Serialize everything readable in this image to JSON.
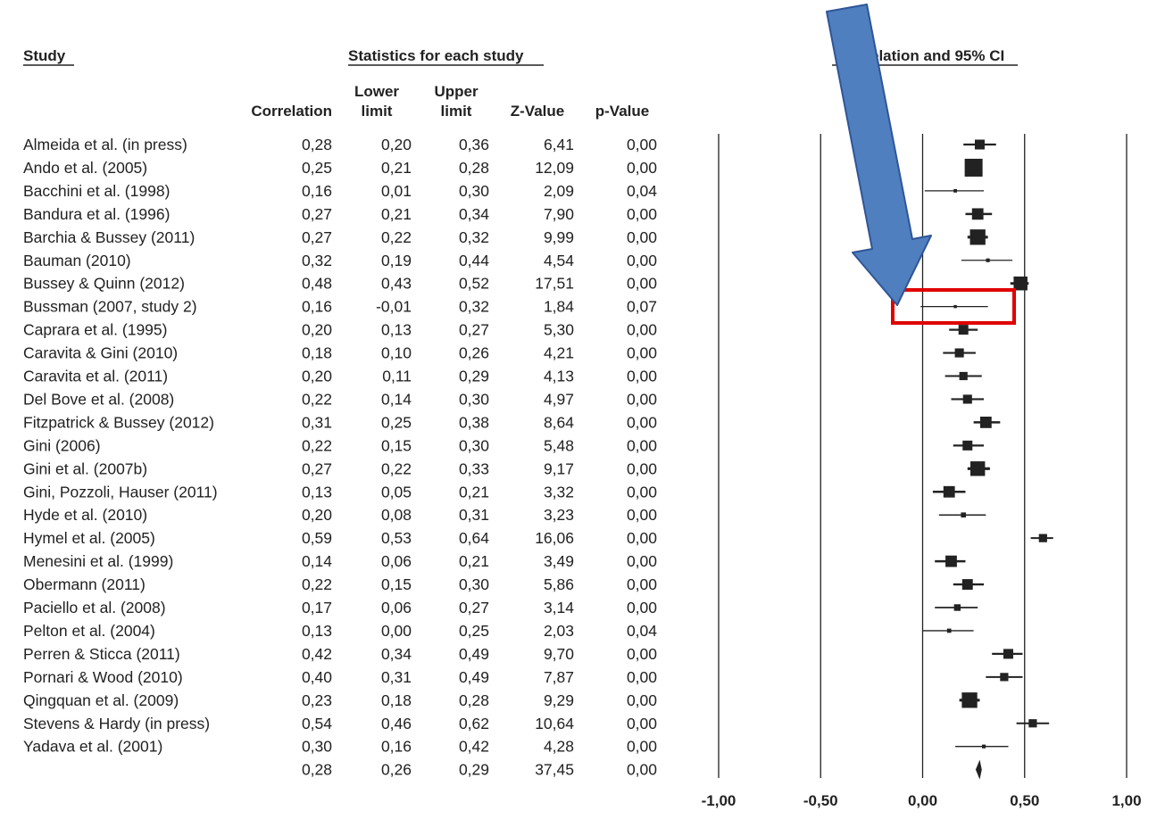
{
  "headers": {
    "study": "Study",
    "stats_group": "Statistics for each study",
    "plot_group": "elation and 95% CI",
    "correlation": "Correlation",
    "lower_1": "Lower",
    "lower_2": "limit",
    "upper_1": "Upper",
    "upper_2": "limit",
    "zvalue": "Z-Value",
    "pvalue": "p-Value"
  },
  "colors": {
    "arrow_fill": "#4f7fbf",
    "arrow_stroke": "#2f5597",
    "highlight_box": "#e00000",
    "marker": "#222222"
  },
  "annotation": {
    "arrow": "down-left pointing arrow",
    "highlight_row_index": 7
  },
  "chart_data": {
    "type": "forest",
    "xlim": [
      -1.0,
      1.0
    ],
    "ticks": [
      {
        "value": -1.0,
        "label": "-1,00"
      },
      {
        "value": -0.5,
        "label": "-0,50"
      },
      {
        "value": 0.0,
        "label": "0,00"
      },
      {
        "value": 0.5,
        "label": "0,50"
      },
      {
        "value": 1.0,
        "label": "1,00"
      }
    ],
    "rows": [
      {
        "study": "Almeida et al. (in press)",
        "r": "0,28",
        "lower": "0,20",
        "upper": "0,36",
        "z": "6,41",
        "p": "0,00",
        "est": 0.28,
        "lo": 0.2,
        "hi": 0.36,
        "weight": 0.5
      },
      {
        "study": "Ando et al. (2005)",
        "r": "0,25",
        "lower": "0,21",
        "upper": "0,28",
        "z": "12,09",
        "p": "0,00",
        "est": 0.25,
        "lo": 0.21,
        "hi": 0.28,
        "weight": 1.0
      },
      {
        "study": "Bacchini et al. (1998)",
        "r": "0,16",
        "lower": "0,01",
        "upper": "0,30",
        "z": "2,09",
        "p": "0,04",
        "est": 0.16,
        "lo": 0.01,
        "hi": 0.3,
        "weight": 0.1
      },
      {
        "study": "Bandura et al. (1996)",
        "r": "0,27",
        "lower": "0,21",
        "upper": "0,34",
        "z": "7,90",
        "p": "0,00",
        "est": 0.27,
        "lo": 0.21,
        "hi": 0.34,
        "weight": 0.6
      },
      {
        "study": "Barchia & Bussey (2011)",
        "r": "0,27",
        "lower": "0,22",
        "upper": "0,32",
        "z": "9,99",
        "p": "0,00",
        "est": 0.27,
        "lo": 0.22,
        "hi": 0.32,
        "weight": 0.85
      },
      {
        "study": "Bauman (2010)",
        "r": "0,32",
        "lower": "0,19",
        "upper": "0,44",
        "z": "4,54",
        "p": "0,00",
        "est": 0.32,
        "lo": 0.19,
        "hi": 0.44,
        "weight": 0.12
      },
      {
        "study": "Bussey & Quinn (2012)",
        "r": "0,48",
        "lower": "0,43",
        "upper": "0,52",
        "z": "17,51",
        "p": "0,00",
        "est": 0.48,
        "lo": 0.43,
        "hi": 0.52,
        "weight": 0.75
      },
      {
        "study": "Bussman (2007, study 2)",
        "r": "0,16",
        "lower": "-0,01",
        "upper": "0,32",
        "z": "1,84",
        "p": "0,07",
        "est": 0.16,
        "lo": -0.01,
        "hi": 0.32,
        "weight": 0.08
      },
      {
        "study": "Caprara et al. (1995)",
        "r": "0,20",
        "lower": "0,13",
        "upper": "0,27",
        "z": "5,30",
        "p": "0,00",
        "est": 0.2,
        "lo": 0.13,
        "hi": 0.27,
        "weight": 0.5
      },
      {
        "study": "Caravita & Gini (2010)",
        "r": "0,18",
        "lower": "0,10",
        "upper": "0,26",
        "z": "4,21",
        "p": "0,00",
        "est": 0.18,
        "lo": 0.1,
        "hi": 0.26,
        "weight": 0.45
      },
      {
        "study": "Caravita et al. (2011)",
        "r": "0,20",
        "lower": "0,11",
        "upper": "0,29",
        "z": "4,13",
        "p": "0,00",
        "est": 0.2,
        "lo": 0.11,
        "hi": 0.29,
        "weight": 0.4
      },
      {
        "study": "Del Bove et al. (2008)",
        "r": "0,22",
        "lower": "0,14",
        "upper": "0,30",
        "z": "4,97",
        "p": "0,00",
        "est": 0.22,
        "lo": 0.14,
        "hi": 0.3,
        "weight": 0.45
      },
      {
        "study": "Fitzpatrick & Bussey (2012)",
        "r": "0,31",
        "lower": "0,25",
        "upper": "0,38",
        "z": "8,64",
        "p": "0,00",
        "est": 0.31,
        "lo": 0.25,
        "hi": 0.38,
        "weight": 0.6
      },
      {
        "study": "Gini (2006)",
        "r": "0,22",
        "lower": "0,15",
        "upper": "0,30",
        "z": "5,48",
        "p": "0,00",
        "est": 0.22,
        "lo": 0.15,
        "hi": 0.3,
        "weight": 0.5
      },
      {
        "study": "Gini et al. (2007b)",
        "r": "0,27",
        "lower": "0,22",
        "upper": "0,33",
        "z": "9,17",
        "p": "0,00",
        "est": 0.27,
        "lo": 0.22,
        "hi": 0.33,
        "weight": 0.8
      },
      {
        "study": "Gini, Pozzoli, Hauser (2011)",
        "r": "0,13",
        "lower": "0,05",
        "upper": "0,21",
        "z": "3,32",
        "p": "0,00",
        "est": 0.13,
        "lo": 0.05,
        "hi": 0.21,
        "weight": 0.6
      },
      {
        "study": "Hyde et al. (2010)",
        "r": "0,20",
        "lower": "0,08",
        "upper": "0,31",
        "z": "3,23",
        "p": "0,00",
        "est": 0.2,
        "lo": 0.08,
        "hi": 0.31,
        "weight": 0.2
      },
      {
        "study": "Hymel et al. (2005)",
        "r": "0,59",
        "lower": "0,53",
        "upper": "0,64",
        "z": "16,06",
        "p": "0,00",
        "est": 0.59,
        "lo": 0.53,
        "hi": 0.64,
        "weight": 0.4
      },
      {
        "study": "Menesini et al. (1999)",
        "r": "0,14",
        "lower": "0,06",
        "upper": "0,21",
        "z": "3,49",
        "p": "0,00",
        "est": 0.14,
        "lo": 0.06,
        "hi": 0.21,
        "weight": 0.6
      },
      {
        "study": "Obermann (2011)",
        "r": "0,22",
        "lower": "0,15",
        "upper": "0,30",
        "z": "5,86",
        "p": "0,00",
        "est": 0.22,
        "lo": 0.15,
        "hi": 0.3,
        "weight": 0.55
      },
      {
        "study": "Paciello et al. (2008)",
        "r": "0,17",
        "lower": "0,06",
        "upper": "0,27",
        "z": "3,14",
        "p": "0,00",
        "est": 0.17,
        "lo": 0.06,
        "hi": 0.27,
        "weight": 0.3
      },
      {
        "study": "Pelton et al. (2004)",
        "r": "0,13",
        "lower": "0,00",
        "upper": "0,25",
        "z": "2,03",
        "p": "0,04",
        "est": 0.13,
        "lo": 0.0,
        "hi": 0.25,
        "weight": 0.15
      },
      {
        "study": "Perren & Sticca (2011)",
        "r": "0,42",
        "lower": "0,34",
        "upper": "0,49",
        "z": "9,70",
        "p": "0,00",
        "est": 0.42,
        "lo": 0.34,
        "hi": 0.49,
        "weight": 0.5
      },
      {
        "study": "Pornari & Wood (2010)",
        "r": "0,40",
        "lower": "0,31",
        "upper": "0,49",
        "z": "7,87",
        "p": "0,00",
        "est": 0.4,
        "lo": 0.31,
        "hi": 0.49,
        "weight": 0.4
      },
      {
        "study": "Qingquan et al. (2009)",
        "r": "0,23",
        "lower": "0,18",
        "upper": "0,28",
        "z": "9,29",
        "p": "0,00",
        "est": 0.23,
        "lo": 0.18,
        "hi": 0.28,
        "weight": 0.85
      },
      {
        "study": "Stevens & Hardy (in press)",
        "r": "0,54",
        "lower": "0,46",
        "upper": "0,62",
        "z": "10,64",
        "p": "0,00",
        "est": 0.54,
        "lo": 0.46,
        "hi": 0.62,
        "weight": 0.4
      },
      {
        "study": "Yadava et al. (2001)",
        "r": "0,30",
        "lower": "0,16",
        "upper": "0,42",
        "z": "4,28",
        "p": "0,00",
        "est": 0.3,
        "lo": 0.16,
        "hi": 0.42,
        "weight": 0.12
      }
    ],
    "summary": {
      "study": "",
      "r": "0,28",
      "lower": "0,26",
      "upper": "0,29",
      "z": "37,45",
      "p": "0,00",
      "est": 0.28,
      "lo": 0.26,
      "hi": 0.29
    }
  }
}
